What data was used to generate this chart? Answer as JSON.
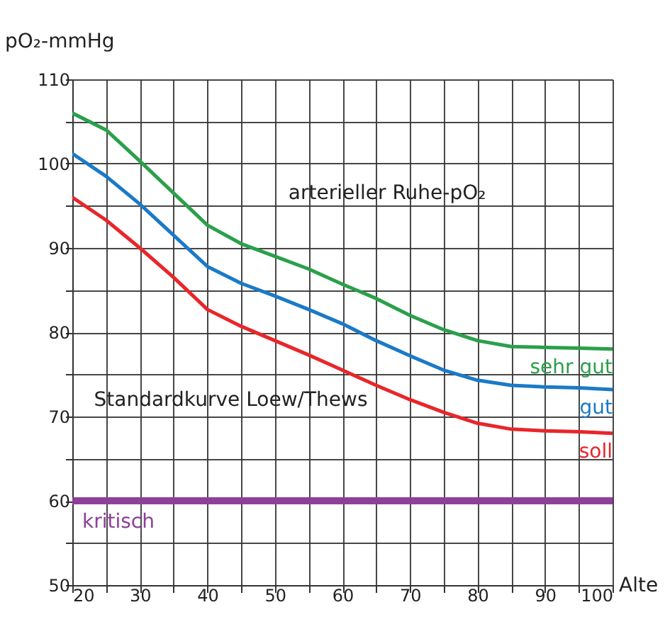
{
  "chart_data": {
    "type": "line",
    "xlabel": "Alte",
    "ylabel": "pO₂-mmHg",
    "annotations": [
      "arterieller Ruhe-pO₂",
      "Standardkurve Loew/Thews"
    ],
    "x": [
      20,
      25,
      30,
      35,
      40,
      45,
      50,
      55,
      60,
      65,
      70,
      75,
      80,
      85,
      90,
      95,
      100
    ],
    "series": [
      {
        "name": "sehr gut",
        "color": "#2aa04a",
        "values": [
          106,
          104,
          100.3,
          96.5,
          92.7,
          90.5,
          89,
          87.5,
          85.7,
          84,
          82,
          80.3,
          79,
          78.3,
          78.2,
          78.1,
          78
        ]
      },
      {
        "name": "gut",
        "color": "#1a7ac8",
        "values": [
          101.2,
          98.5,
          95.2,
          91.5,
          87.8,
          85.8,
          84.3,
          82.7,
          81,
          79,
          77.2,
          75.5,
          74.3,
          73.7,
          73.5,
          73.4,
          73.2
        ]
      },
      {
        "name": "soll",
        "color": "#e8262a",
        "values": [
          96,
          93.3,
          90,
          86.5,
          82.7,
          80.7,
          79,
          77.3,
          75.5,
          73.7,
          72,
          70.5,
          69.2,
          68.5,
          68.3,
          68.2,
          68
        ]
      }
    ],
    "xlim": [
      20,
      100
    ],
    "xticks": [
      20,
      {
        "value": 25,
        "label": null
      },
      30,
      {
        "value": 35,
        "label": null
      },
      40,
      {
        "value": 45,
        "label": null
      },
      50,
      {
        "value": 55,
        "label": null
      },
      60,
      {
        "value": 65,
        "label": null
      },
      70,
      {
        "value": 75,
        "label": null
      },
      80,
      {
        "value": 85,
        "label": null
      },
      90,
      {
        "value": 95,
        "label": null
      },
      100
    ],
    "ylim": [
      50,
      110
    ],
    "yticks": [
      50,
      {
        "value": 55,
        "label": null
      },
      60,
      {
        "value": 65,
        "label": null
      },
      70,
      {
        "value": 75,
        "label": null
      },
      80,
      {
        "value": 85,
        "label": null
      },
      90,
      {
        "value": 95,
        "label": null
      },
      100,
      {
        "value": 105,
        "label": null
      },
      110
    ],
    "grid": true,
    "marker": "none",
    "line_style": "solid",
    "legend": false,
    "ref_lines": [
      {
        "axis": "y",
        "value": 60,
        "label": "kritisch",
        "color": "#8e3f9a"
      }
    ]
  }
}
